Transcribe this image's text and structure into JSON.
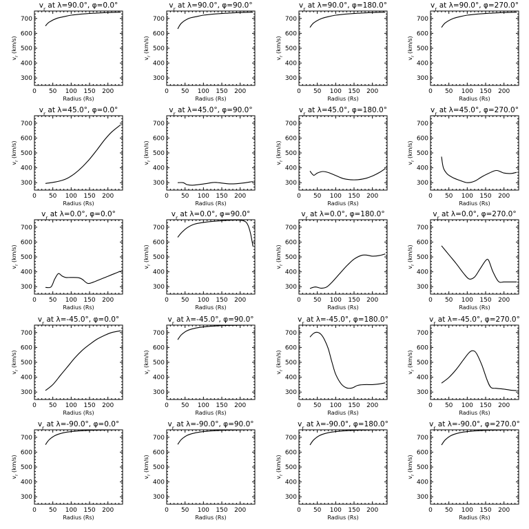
{
  "chart_data": [
    {
      "type": "line",
      "title": "v<sub>r</sub> at λ=90.0°, φ=0.0°",
      "xlabel": "Radius (Rs)",
      "ylabel": "v<sub>r</sub> (km/s)",
      "xlim": [
        0,
        240
      ],
      "ylim": [
        250,
        750
      ],
      "x": [
        30,
        40,
        60,
        80,
        100,
        130,
        160,
        200,
        235
      ],
      "series": [
        {
          "values": [
            650,
            675,
            700,
            712,
            722,
            730,
            735,
            740,
            742
          ]
        }
      ]
    },
    {
      "type": "line",
      "title": "v<sub>r</sub> at λ=90.0°, φ=90.0°",
      "xlabel": "Radius (Rs)",
      "ylabel": "v<sub>r</sub> (km/s)",
      "xlim": [
        0,
        240
      ],
      "ylim": [
        250,
        750
      ],
      "x": [
        30,
        40,
        60,
        80,
        100,
        130,
        160,
        200,
        235
      ],
      "series": [
        {
          "values": [
            630,
            668,
            700,
            712,
            722,
            730,
            735,
            740,
            742
          ]
        }
      ]
    },
    {
      "type": "line",
      "title": "v<sub>r</sub> at λ=90.0°, φ=180.0°",
      "xlabel": "Radius (Rs)",
      "ylabel": "v<sub>r</sub> (km/s)",
      "xlim": [
        0,
        240
      ],
      "ylim": [
        250,
        750
      ],
      "x": [
        30,
        40,
        60,
        80,
        100,
        130,
        160,
        200,
        235
      ],
      "series": [
        {
          "values": [
            640,
            670,
            698,
            712,
            722,
            730,
            735,
            740,
            742
          ]
        }
      ]
    },
    {
      "type": "line",
      "title": "v<sub>r</sub> at λ=90.0°, φ=270.0°",
      "xlabel": "Radius (Rs)",
      "ylabel": "v<sub>r</sub> (km/s)",
      "xlim": [
        0,
        240
      ],
      "ylim": [
        250,
        750
      ],
      "x": [
        30,
        40,
        60,
        80,
        100,
        130,
        160,
        200,
        235
      ],
      "series": [
        {
          "values": [
            640,
            670,
            698,
            712,
            722,
            730,
            735,
            740,
            742
          ]
        }
      ]
    },
    {
      "type": "line",
      "title": "v<sub>r</sub> at λ=45.0°, φ=0.0°",
      "xlabel": "Radius (Rs)",
      "ylabel": "v<sub>r</sub> (km/s)",
      "xlim": [
        0,
        240
      ],
      "ylim": [
        250,
        750
      ],
      "x": [
        30,
        50,
        70,
        90,
        110,
        130,
        150,
        170,
        190,
        210,
        235
      ],
      "series": [
        {
          "values": [
            295,
            302,
            312,
            330,
            362,
            405,
            458,
            520,
            585,
            640,
            690
          ]
        }
      ]
    },
    {
      "type": "line",
      "title": "v<sub>r</sub> at λ=45.0°, φ=90.0°",
      "xlabel": "Radius (Rs)",
      "ylabel": "v<sub>r</sub> (km/s)",
      "xlim": [
        0,
        240
      ],
      "ylim": [
        250,
        750
      ],
      "x": [
        30,
        45,
        55,
        70,
        90,
        110,
        130,
        150,
        170,
        190,
        210,
        235
      ],
      "series": [
        {
          "values": [
            300,
            300,
            287,
            283,
            288,
            295,
            302,
            297,
            292,
            293,
            298,
            308
          ]
        }
      ]
    },
    {
      "type": "line",
      "title": "v<sub>r</sub> at λ=45.0°, φ=180.0°",
      "xlabel": "Radius (Rs)",
      "ylabel": "v<sub>r</sub> (km/s)",
      "xlim": [
        0,
        240
      ],
      "ylim": [
        250,
        750
      ],
      "x": [
        30,
        40,
        50,
        65,
        80,
        100,
        120,
        140,
        160,
        180,
        200,
        220,
        235
      ],
      "series": [
        {
          "values": [
            378,
            350,
            365,
            375,
            368,
            348,
            328,
            320,
            320,
            328,
            345,
            370,
            395
          ]
        }
      ]
    },
    {
      "type": "line",
      "title": "v<sub>r</sub> at λ=45.0°, φ=270.0°",
      "xlabel": "Radius (Rs)",
      "ylabel": "v<sub>r</sub> (km/s)",
      "xlim": [
        0,
        240
      ],
      "ylim": [
        250,
        750
      ],
      "x": [
        30,
        35,
        45,
        60,
        80,
        100,
        120,
        140,
        160,
        180,
        200,
        220,
        235
      ],
      "series": [
        {
          "values": [
            475,
            400,
            360,
            335,
            315,
            300,
            310,
            340,
            365,
            382,
            365,
            362,
            370
          ]
        }
      ]
    },
    {
      "type": "line",
      "title": "v<sub>r</sub> at λ=0.0°, φ=0.0°",
      "xlabel": "Radius (Rs)",
      "ylabel": "v<sub>r</sub> (km/s)",
      "xlim": [
        0,
        240
      ],
      "ylim": [
        250,
        750
      ],
      "x": [
        30,
        45,
        55,
        65,
        75,
        85,
        100,
        120,
        130,
        145,
        160,
        180,
        200,
        220,
        235
      ],
      "series": [
        {
          "values": [
            295,
            298,
            350,
            388,
            372,
            362,
            362,
            360,
            350,
            322,
            330,
            350,
            370,
            390,
            405
          ]
        }
      ]
    },
    {
      "type": "line",
      "title": "v<sub>r</sub> at λ=0.0°, φ=90.0°",
      "xlabel": "Radius (Rs)",
      "ylabel": "v<sub>r</sub> (km/s)",
      "xlim": [
        0,
        240
      ],
      "ylim": [
        250,
        750
      ],
      "x": [
        30,
        40,
        55,
        75,
        100,
        130,
        160,
        190,
        210,
        220,
        228,
        235
      ],
      "series": [
        {
          "values": [
            632,
            662,
            695,
            720,
            732,
            740,
            745,
            748,
            742,
            720,
            660,
            570
          ]
        }
      ]
    },
    {
      "type": "line",
      "title": "v<sub>r</sub> at λ=0.0°, φ=180.0°",
      "xlabel": "Radius (Rs)",
      "ylabel": "v<sub>r</sub> (km/s)",
      "xlim": [
        0,
        240
      ],
      "ylim": [
        250,
        750
      ],
      "x": [
        30,
        45,
        60,
        75,
        90,
        110,
        130,
        150,
        170,
        185,
        200,
        220,
        235
      ],
      "series": [
        {
          "values": [
            288,
            298,
            290,
            297,
            330,
            385,
            440,
            485,
            510,
            512,
            505,
            510,
            520
          ]
        }
      ]
    },
    {
      "type": "line",
      "title": "v<sub>r</sub> at λ=0.0°, φ=270.0°",
      "xlabel": "Radius (Rs)",
      "ylabel": "v<sub>r</sub> (km/s)",
      "xlim": [
        0,
        240
      ],
      "ylim": [
        250,
        750
      ],
      "x": [
        30,
        50,
        70,
        90,
        105,
        120,
        135,
        150,
        158,
        170,
        185,
        200,
        220,
        235
      ],
      "series": [
        {
          "values": [
            575,
            515,
            455,
            390,
            352,
            365,
            420,
            475,
            478,
            400,
            335,
            332,
            332,
            332
          ]
        }
      ]
    },
    {
      "type": "line",
      "title": "v<sub>r</sub> at λ=-45.0°, φ=0.0°",
      "xlabel": "Radius (Rs)",
      "ylabel": "v<sub>r</sub> (km/s)",
      "xlim": [
        0,
        240
      ],
      "ylim": [
        250,
        750
      ],
      "x": [
        30,
        50,
        70,
        90,
        110,
        130,
        150,
        170,
        190,
        210,
        235
      ],
      "series": [
        {
          "values": [
            310,
            350,
            410,
            470,
            530,
            580,
            620,
            655,
            680,
            700,
            712
          ]
        }
      ]
    },
    {
      "type": "line",
      "title": "v<sub>r</sub> at λ=-45.0°, φ=90.0°",
      "xlabel": "Radius (Rs)",
      "ylabel": "v<sub>r</sub> (km/s)",
      "xlim": [
        0,
        240
      ],
      "ylim": [
        250,
        750
      ],
      "x": [
        30,
        40,
        55,
        75,
        100,
        130,
        160,
        200,
        235
      ],
      "series": [
        {
          "values": [
            652,
            685,
            712,
            728,
            738,
            744,
            747,
            749,
            750
          ]
        }
      ]
    },
    {
      "type": "line",
      "title": "v<sub>r</sub> at λ=-45.0°, φ=180.0°",
      "xlabel": "Radius (Rs)",
      "ylabel": "v<sub>r</sub> (km/s)",
      "xlim": [
        0,
        240
      ],
      "ylim": [
        250,
        750
      ],
      "x": [
        30,
        40,
        50,
        60,
        70,
        80,
        90,
        100,
        115,
        130,
        145,
        160,
        180,
        200,
        220,
        235
      ],
      "series": [
        {
          "values": [
            670,
            695,
            702,
            688,
            650,
            590,
            500,
            420,
            355,
            328,
            328,
            345,
            350,
            350,
            355,
            362
          ]
        }
      ]
    },
    {
      "type": "line",
      "title": "v<sub>r</sub> at λ=-45.0°, φ=270.0°",
      "xlabel": "Radius (Rs)",
      "ylabel": "v<sub>r</sub> (km/s)",
      "xlim": [
        0,
        240
      ],
      "ylim": [
        250,
        750
      ],
      "x": [
        30,
        50,
        70,
        90,
        105,
        115,
        125,
        140,
        155,
        165,
        180,
        200,
        220,
        235
      ],
      "series": [
        {
          "values": [
            360,
            398,
            452,
            518,
            565,
            578,
            560,
            480,
            375,
            330,
            325,
            320,
            312,
            310
          ]
        }
      ]
    },
    {
      "type": "line",
      "title": "v<sub>r</sub> at λ=-90.0°, φ=0.0°",
      "xlabel": "Radius (Rs)",
      "ylabel": "v<sub>r</sub> (km/s)",
      "xlim": [
        0,
        240
      ],
      "ylim": [
        250,
        750
      ],
      "x": [
        30,
        40,
        55,
        75,
        100,
        130,
        160,
        200,
        235
      ],
      "series": [
        {
          "values": [
            650,
            683,
            710,
            728,
            738,
            744,
            747,
            749,
            750
          ]
        }
      ]
    },
    {
      "type": "line",
      "title": "v<sub>r</sub> at λ=-90.0°, φ=90.0°",
      "xlabel": "Radius (Rs)",
      "ylabel": "v<sub>r</sub> (km/s)",
      "xlim": [
        0,
        240
      ],
      "ylim": [
        250,
        750
      ],
      "x": [
        30,
        40,
        55,
        75,
        100,
        130,
        160,
        200,
        235
      ],
      "series": [
        {
          "values": [
            652,
            685,
            712,
            728,
            738,
            744,
            747,
            749,
            750
          ]
        }
      ]
    },
    {
      "type": "line",
      "title": "v<sub>r</sub> at λ=-90.0°, φ=180.0°",
      "xlabel": "Radius (Rs)",
      "ylabel": "v<sub>r</sub> (km/s)",
      "xlim": [
        0,
        240
      ],
      "ylim": [
        250,
        750
      ],
      "x": [
        30,
        40,
        55,
        75,
        100,
        130,
        160,
        200,
        235
      ],
      "series": [
        {
          "values": [
            648,
            682,
            710,
            728,
            738,
            744,
            747,
            749,
            750
          ]
        }
      ]
    },
    {
      "type": "line",
      "title": "v<sub>r</sub> at λ=-90.0°, φ=270.0°",
      "xlabel": "Radius (Rs)",
      "ylabel": "v<sub>r</sub> (km/s)",
      "xlim": [
        0,
        240
      ],
      "ylim": [
        250,
        750
      ],
      "x": [
        30,
        40,
        55,
        75,
        100,
        130,
        160,
        200,
        235
      ],
      "series": [
        {
          "values": [
            648,
            682,
            710,
            728,
            738,
            744,
            747,
            749,
            750
          ]
        }
      ]
    }
  ]
}
